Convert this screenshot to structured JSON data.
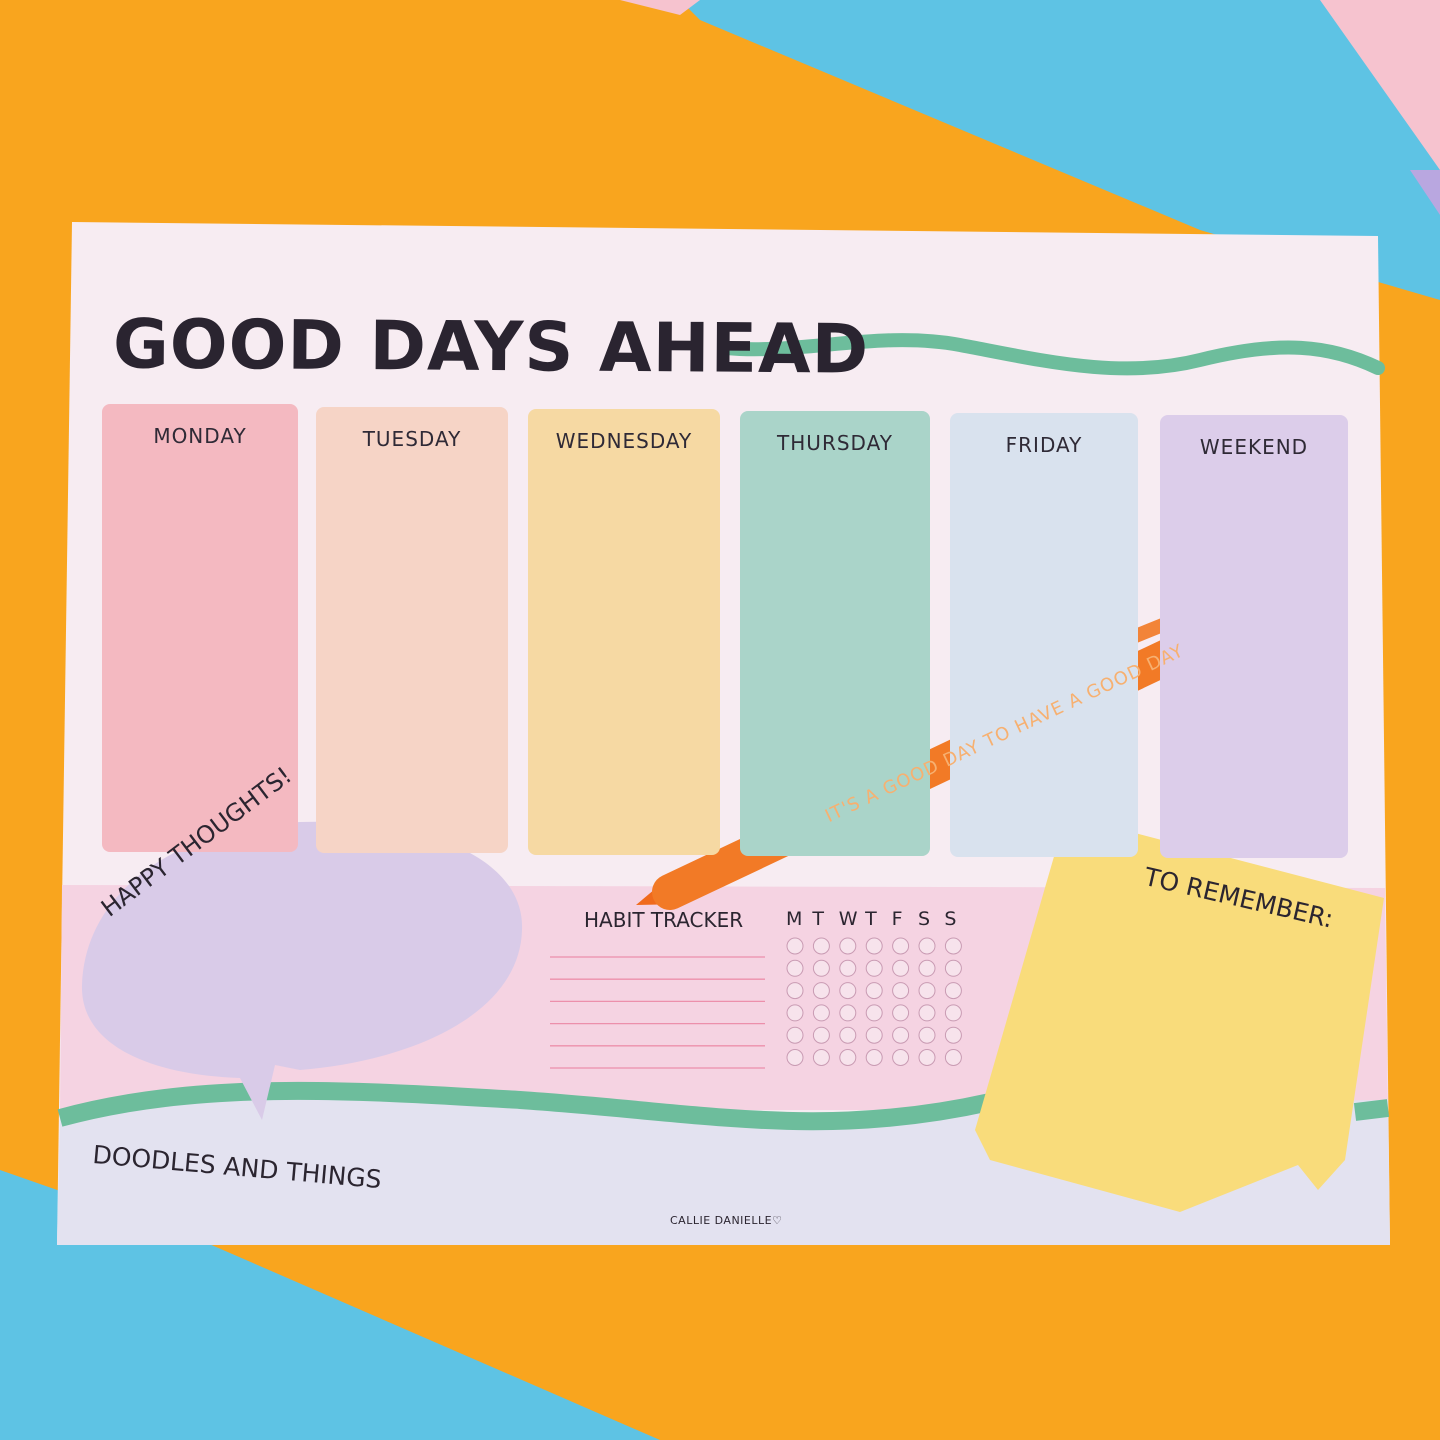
{
  "planner": {
    "title": "GOOD DAYS AHEAD",
    "days": [
      {
        "label": "MONDAY",
        "color": "#f4b9c1"
      },
      {
        "label": "TUESDAY",
        "color": "#f6d4c6"
      },
      {
        "label": "WEDNESDAY",
        "color": "#f6d9a3"
      },
      {
        "label": "THURSDAY",
        "color": "#aad4c9"
      },
      {
        "label": "FRIDAY",
        "color": "#d9e2ee"
      },
      {
        "label": "WEEKEND",
        "color": "#dccdea"
      }
    ],
    "happy_thoughts": "HAPPY THOUGHTS!",
    "habit_tracker": {
      "title": "HABIT TRACKER",
      "weekdays": [
        "M",
        "T",
        "W",
        "T",
        "F",
        "S",
        "S"
      ]
    },
    "to_remember": "TO REMEMBER:",
    "doodles": "DOODLES AND THINGS",
    "brand": "CALLIE DANIELLE♡"
  },
  "pen": {
    "text": "IT'S A GOOD DAY TO HAVE A GOOD DAY",
    "color": "#f27a26"
  },
  "colors": {
    "accent_wave": "#6dbd9c",
    "background_orange": "#f9a51e",
    "background_blue": "#5ec3e4"
  }
}
